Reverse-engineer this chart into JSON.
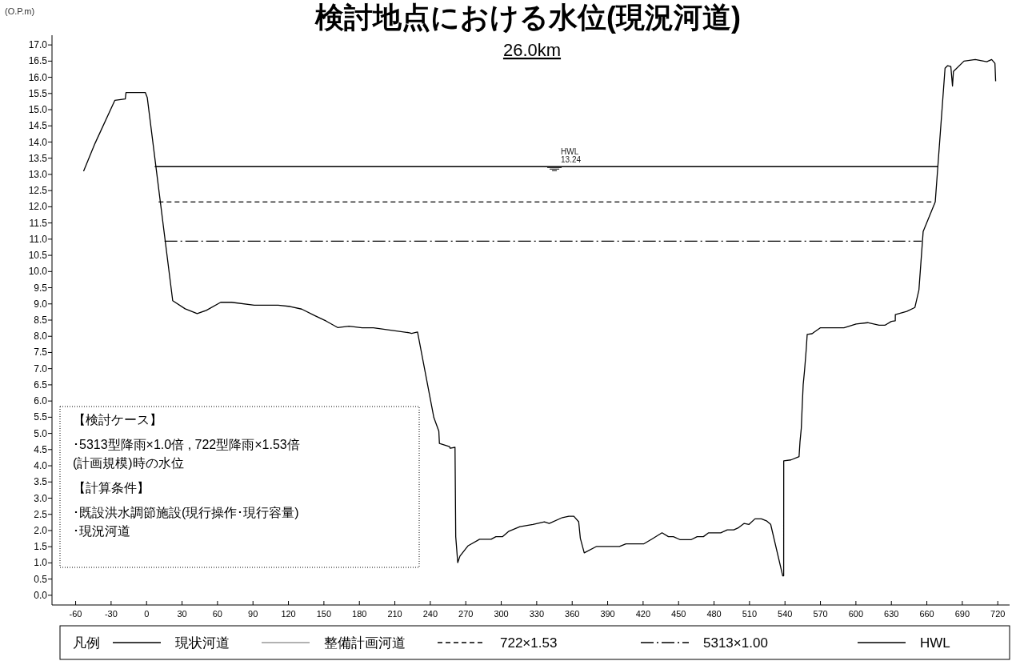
{
  "chart_data": {
    "type": "line",
    "title": "検討地点における水位(現況河道)",
    "subtitle": "26.0km",
    "ylabel": "(O.P.m)",
    "legend_title": "凡例",
    "legend": "bottom",
    "grid": false,
    "marker": "none",
    "xlim": [
      -80,
      730
    ],
    "ylim": [
      -0.3,
      17.3
    ],
    "xticks": [
      -60,
      -30,
      0,
      30,
      60,
      90,
      120,
      150,
      180,
      210,
      240,
      270,
      300,
      330,
      360,
      390,
      420,
      450,
      480,
      510,
      540,
      570,
      600,
      630,
      660,
      690,
      720
    ],
    "yticks": [
      {
        "value": 0,
        "label": "0.0"
      },
      0.5,
      {
        "value": 1,
        "label": "1.0"
      },
      1.5,
      {
        "value": 2,
        "label": "2.0"
      },
      2.5,
      {
        "value": 3,
        "label": "3.0"
      },
      3.5,
      {
        "value": 4,
        "label": "4.0"
      },
      4.5,
      {
        "value": 5,
        "label": "5.0"
      },
      5.5,
      {
        "value": 6,
        "label": "6.0"
      },
      6.5,
      {
        "value": 7,
        "label": "7.0"
      },
      7.5,
      {
        "value": 8,
        "label": "8.0"
      },
      8.5,
      {
        "value": 9,
        "label": "9.0"
      },
      9.5,
      {
        "value": 10,
        "label": "10.0"
      },
      10.5,
      {
        "value": 11,
        "label": "11.0"
      },
      11.5,
      {
        "value": 12,
        "label": "12.0"
      },
      12.5,
      {
        "value": 13,
        "label": "13.0"
      },
      13.5,
      {
        "value": 14,
        "label": "14.0"
      },
      14.5,
      {
        "value": 15,
        "label": "15.0"
      },
      15.5,
      {
        "value": 16,
        "label": "16.0"
      },
      16.5,
      {
        "value": 17,
        "label": "17.0"
      }
    ],
    "series": [
      {
        "name": "現状河道",
        "color": "#000000",
        "line_style": "solid",
        "x": [
          -53.3,
          -43.6,
          -26.8,
          -18.0,
          -17.4,
          -1.1,
          0.6,
          22.1,
          32.6,
          42.8,
          50.5,
          62.7,
          71.8,
          91.1,
          111.3,
          121.5,
          131.2,
          142.2,
          151.9,
          161.6,
          171.2,
          182.3,
          191.9,
          222.3,
          224.2,
          229.2,
          243,
          247.2,
          247.7,
          256.3,
          256.8,
          260.9,
          261.5,
          263.2,
          265.1,
          272,
          281.7,
          291.4,
          295.5,
          301,
          306.1,
          315.8,
          326.8,
          336.5,
          340.6,
          351.7,
          357.2,
          361.4,
          365.5,
          366.9,
          370.2,
          380.7,
          400,
          405.5,
          420.7,
          427.6,
          436,
          441.4,
          445.6,
          451.1,
          460.8,
          465.7,
          471,
          475.4,
          485.6,
          491.2,
          496.7,
          500.8,
          505.5,
          509.6,
          514.6,
          520.1,
          524.3,
          527.9,
          538.1,
          538.9,
          538.95,
          545,
          551.9,
          552.7,
          553.8,
          554.6,
          555.4,
          556.6,
          558,
          558.8,
          562.9,
          569.8,
          589.9,
          600.2,
          609.9,
          619.6,
          624.5,
          630,
          633.3,
          633.35,
          643,
          649.9,
          653.3,
          656.9,
          667.1,
          669.3,
          675.4,
          677.6,
          680.3,
          681.7,
          682.5,
          691.4,
          701,
          710.7,
          714.8,
          717.6,
          718.2
        ],
        "values": [
          13.1,
          13.96,
          15.29,
          15.33,
          15.53,
          15.53,
          15.37,
          9.1,
          8.85,
          8.7,
          8.8,
          9.05,
          9.05,
          8.96,
          8.96,
          8.92,
          8.84,
          8.64,
          8.47,
          8.27,
          8.31,
          8.26,
          8.26,
          8.11,
          8.09,
          8.13,
          5.49,
          5.07,
          4.69,
          4.59,
          4.54,
          4.57,
          1.81,
          1.01,
          1.21,
          1.53,
          1.73,
          1.73,
          1.81,
          1.81,
          1.97,
          2.12,
          2.19,
          2.27,
          2.22,
          2.4,
          2.44,
          2.44,
          2.27,
          1.76,
          1.31,
          1.51,
          1.51,
          1.59,
          1.59,
          1.74,
          1.93,
          1.81,
          1.81,
          1.72,
          1.72,
          1.81,
          1.81,
          1.93,
          1.93,
          2.02,
          2.02,
          2.09,
          2.22,
          2.19,
          2.36,
          2.36,
          2.3,
          2.19,
          0.6,
          0.6,
          4.15,
          4.18,
          4.28,
          4.74,
          5.16,
          5.87,
          6.5,
          6.96,
          7.61,
          8.06,
          8.08,
          8.26,
          8.26,
          8.38,
          8.42,
          8.34,
          8.34,
          8.46,
          8.48,
          8.67,
          8.77,
          8.89,
          9.43,
          11.24,
          12.15,
          13.24,
          16.28,
          16.36,
          16.33,
          15.73,
          16.18,
          16.5,
          16.55,
          16.48,
          16.55,
          16.43,
          15.88
        ]
      },
      {
        "name": "整備計画河道",
        "color": "#999999",
        "line_style": "solid"
      },
      {
        "name": "722×1.53",
        "color": "#000000",
        "line_style": "dashed",
        "x": [
          10.2,
          663.8
        ],
        "values": [
          12.15,
          12.15
        ]
      },
      {
        "name": "5313×1.00",
        "color": "#000000",
        "line_style": "dashdot",
        "x": [
          15.2,
          655.5
        ],
        "values": [
          10.94,
          10.94
        ]
      },
      {
        "name": "HWL",
        "color": "#000000",
        "line_style": "solid",
        "x": [
          6.9,
          669.3
        ],
        "values": [
          13.24,
          13.24
        ]
      }
    ],
    "annotations": [
      {
        "text": "HWL",
        "x": 345,
        "y": 13.24
      },
      {
        "text": "13.24",
        "x": 345,
        "y": 13.24
      },
      "【検討ケース】",
      "･5313型降雨×1.0倍 , 722型降雨×1.53倍",
      "(計画規模)時の水位",
      "【計算条件】",
      "･既設洪水調節施設(現行操作･現行容量)",
      "･現況河道"
    ]
  }
}
